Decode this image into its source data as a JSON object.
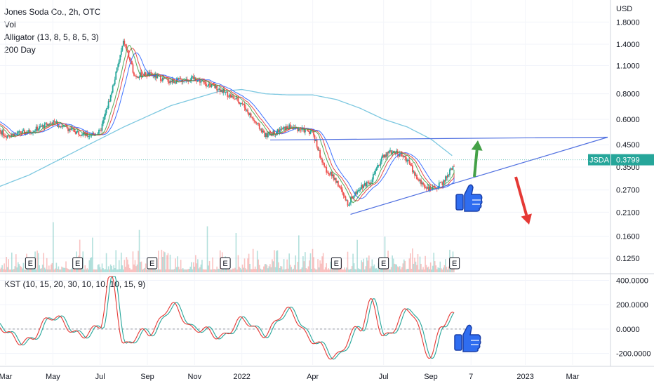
{
  "legend": {
    "title": "Jones Soda Co., 2h, OTC",
    "vol": "Vol",
    "alligator": "Alligator (13, 8, 5, 8, 5, 3)",
    "ma": "200 Day"
  },
  "kst_label": "KST (10, 15, 20, 30, 10, 10, 10, 15, 9)",
  "currency": "USD",
  "ticker_badge": {
    "symbol": "JSDA",
    "price": "0.3799",
    "color": "#26a69a"
  },
  "earnings_marker": "E",
  "colors": {
    "up": "#26a69a",
    "down": "#ef5350",
    "ma200": "#7dc8e0",
    "jaw": "#2962ff",
    "teeth": "#e53935",
    "lips": "#43a047",
    "trend": "#4f6fe0",
    "arrow_up": "#43a047",
    "arrow_down": "#e53935",
    "thumb": "#2f6df0",
    "kst": "#e53935",
    "kst_signal": "#26a69a"
  },
  "icons": [
    "thumbs-up-icon",
    "arrow-up-icon",
    "arrow-down-icon"
  ],
  "chart_data": [
    {
      "type": "line",
      "subtype": "candlestick",
      "title": "Jones Soda Co., 2h, OTC",
      "ylabel": "USD",
      "y_scale": "log",
      "ylim": [
        0.11,
        2.2
      ],
      "x_ticks": [
        "Mar",
        "May",
        "Jul",
        "Sep",
        "Nov",
        "2022",
        "Apr",
        "Jul",
        "Sep",
        "7",
        "2023",
        "Mar"
      ],
      "y_ticks": [
        "1.8000",
        "1.4000",
        "1.1000",
        "0.8000",
        "0.6000",
        "0.4500",
        "0.3500",
        "0.2700",
        "0.2100",
        "0.1600",
        "0.1250"
      ],
      "last_price": 0.3799,
      "series": [
        {
          "name": "Jones Soda Co., 2h, OTC",
          "x": [
            "2021-02",
            "2021-03",
            "2021-04",
            "2021-05",
            "2021-06",
            "2021-06-15",
            "2021-07",
            "2021-07-15",
            "2021-08",
            "2021-08-15",
            "2021-09",
            "2021-10",
            "2021-11",
            "2021-11-15",
            "2021-12",
            "2022-01",
            "2022-01-15",
            "2022-02",
            "2022-03",
            "2022-04",
            "2022-04-15",
            "2022-05",
            "2022-05-15",
            "2022-06",
            "2022-06-15",
            "2022-07",
            "2022-07-15",
            "2022-08",
            "2022-08-15",
            "2022-09",
            "2022-09-15",
            "2022-10"
          ],
          "values": [
            0.62,
            0.5,
            0.52,
            0.58,
            0.52,
            0.5,
            0.52,
            0.8,
            1.45,
            0.98,
            1.0,
            0.92,
            0.95,
            0.9,
            0.85,
            0.72,
            0.6,
            0.5,
            0.55,
            0.52,
            0.35,
            0.3,
            0.23,
            0.28,
            0.3,
            0.4,
            0.42,
            0.38,
            0.3,
            0.27,
            0.29,
            0.36
          ]
        },
        {
          "name": "200 Day",
          "x": [
            "2021-02",
            "2021-04",
            "2021-06",
            "2021-08",
            "2021-10",
            "2021-12",
            "2022-01",
            "2022-02",
            "2022-03",
            "2022-04",
            "2022-05",
            "2022-06",
            "2022-07",
            "2022-08",
            "2022-09",
            "2022-10"
          ],
          "values": [
            0.26,
            0.32,
            0.42,
            0.55,
            0.7,
            0.82,
            0.84,
            0.8,
            0.79,
            0.79,
            0.75,
            0.68,
            0.6,
            0.55,
            0.48,
            0.39
          ]
        }
      ],
      "annotations": [
        "horizontal resistance line ~0.47",
        "ascending support line from 2022 low to 2023",
        "green arrow up",
        "red arrow down",
        "thumbs up"
      ]
    },
    {
      "type": "line",
      "title": "KST (10, 15, 20, 30, 10, 10, 10, 15, 9)",
      "ylim": [
        -260,
        420
      ],
      "y_ticks": [
        "400.0000",
        "200.0000",
        "0.0000",
        "-200.0000"
      ],
      "series": [
        {
          "name": "KST",
          "x": [
            "2021-02",
            "2021-04",
            "2021-05",
            "2021-06",
            "2021-07",
            "2021-07-15",
            "2021-08",
            "2021-09",
            "2021-10",
            "2021-11",
            "2021-12",
            "2022-01",
            "2022-02",
            "2022-03",
            "2022-04",
            "2022-05",
            "2022-06",
            "2022-06-15",
            "2022-07",
            "2022-08",
            "2022-09",
            "2022-09-15",
            "2022-10"
          ],
          "values": [
            50,
            -100,
            120,
            -50,
            20,
            450,
            -120,
            -30,
            180,
            10,
            -60,
            60,
            -30,
            160,
            -110,
            -220,
            20,
            230,
            -80,
            160,
            -210,
            40,
            100
          ]
        }
      ]
    }
  ]
}
